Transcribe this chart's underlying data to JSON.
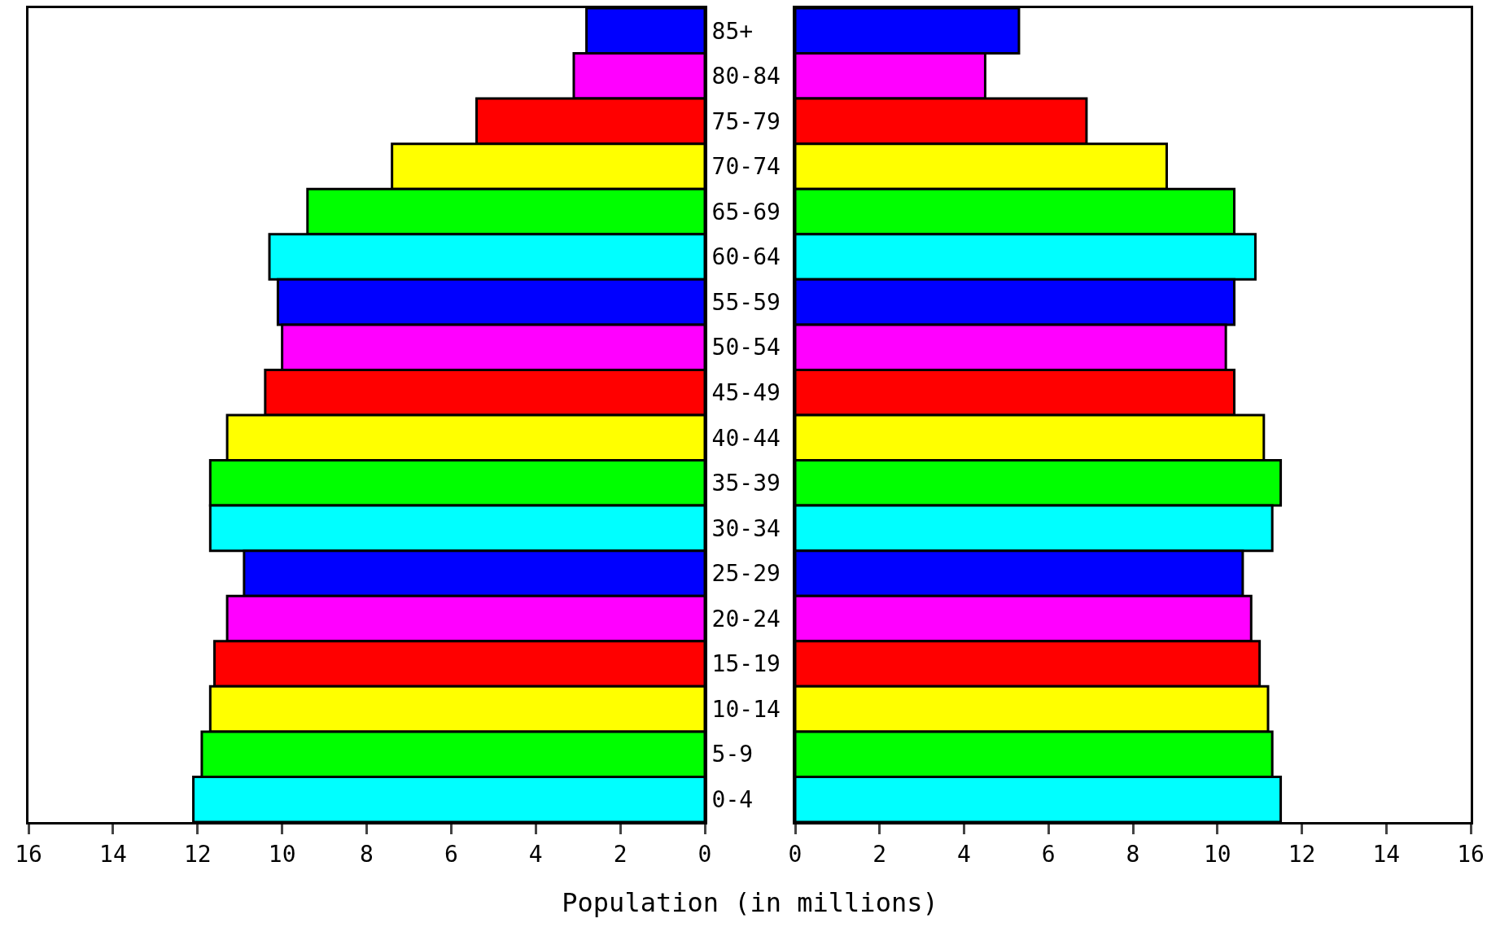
{
  "chart_data": [
    {
      "type": "bar",
      "orientation": "horizontal",
      "categories": [
        "85+",
        "80-84",
        "75-79",
        "70-74",
        "65-69",
        "60-64",
        "55-59",
        "50-54",
        "45-49",
        "40-44",
        "35-39",
        "30-34",
        "25-29",
        "20-24",
        "15-19",
        "10-14",
        "5-9",
        "0-4"
      ],
      "values": [
        2.8,
        3.1,
        5.4,
        7.4,
        9.4,
        10.3,
        10.1,
        10.0,
        10.4,
        11.3,
        11.7,
        11.7,
        10.9,
        11.3,
        11.6,
        11.7,
        11.9,
        12.1
      ],
      "colors": [
        "#0000ff",
        "#ff00ff",
        "#ff0000",
        "#ffff00",
        "#00ff00",
        "#00ffff",
        "#0000ff",
        "#ff00ff",
        "#ff0000",
        "#ffff00",
        "#00ff00",
        "#00ffff",
        "#0000ff",
        "#ff00ff",
        "#ff0000",
        "#ffff00",
        "#00ff00",
        "#00ffff"
      ],
      "xlim": [
        16,
        0
      ],
      "xticks": [
        16,
        14,
        12,
        10,
        8,
        6,
        4,
        2,
        0
      ],
      "xlabel": "Population (in millions)",
      "grid": false
    },
    {
      "type": "bar",
      "orientation": "horizontal",
      "categories": [
        null,
        null,
        null,
        null,
        null,
        null,
        null,
        null,
        null,
        null,
        null,
        null,
        null,
        null,
        null,
        null,
        null,
        null
      ],
      "values": [
        5.3,
        4.5,
        6.9,
        8.8,
        10.4,
        10.9,
        10.4,
        10.2,
        10.4,
        11.1,
        11.5,
        11.3,
        10.6,
        10.8,
        11.0,
        11.2,
        11.3,
        11.5
      ],
      "colors": [
        "#0000ff",
        "#ff00ff",
        "#ff0000",
        "#ffff00",
        "#00ff00",
        "#00ffff",
        "#0000ff",
        "#ff00ff",
        "#ff0000",
        "#ffff00",
        "#00ff00",
        "#00ffff",
        "#0000ff",
        "#ff00ff",
        "#ff0000",
        "#ffff00",
        "#00ff00",
        "#00ffff"
      ],
      "xlim": [
        0,
        16
      ],
      "xticks": [
        0,
        2,
        4,
        6,
        8,
        10,
        12,
        14,
        16
      ],
      "tick_labels": "x",
      "grid": false
    }
  ]
}
